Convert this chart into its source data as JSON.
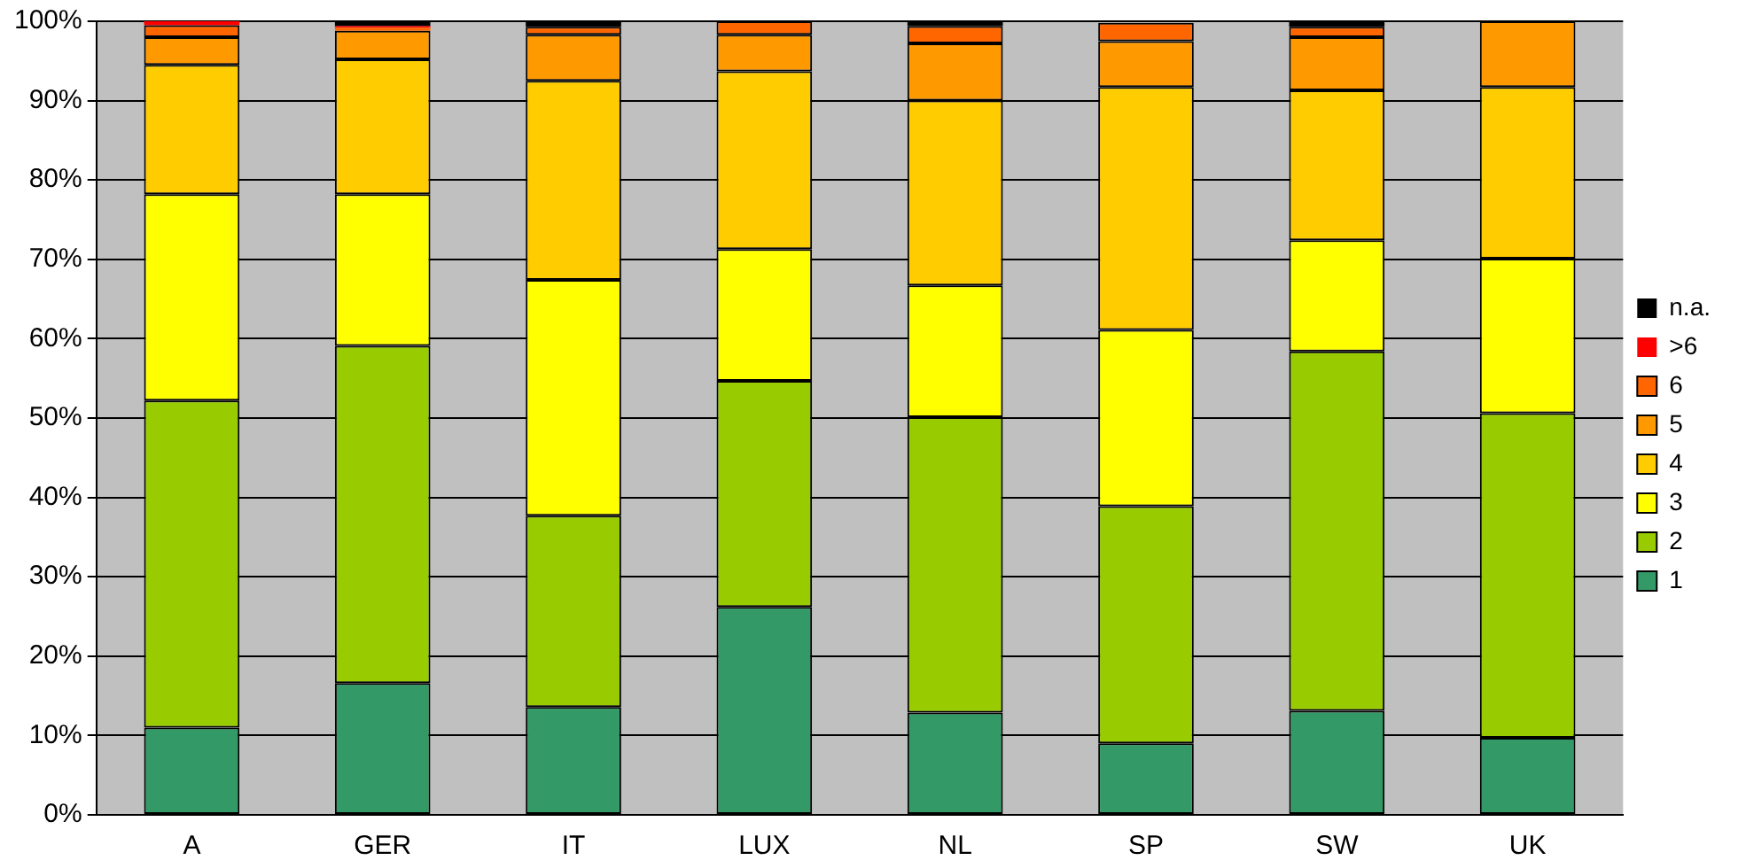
{
  "chart_data": {
    "type": "bar",
    "stacked": true,
    "categories": [
      "A",
      "GER",
      "IT",
      "LUX",
      "NL",
      "SP",
      "SW",
      "UK"
    ],
    "series": [
      {
        "name": "1",
        "color": "#339966",
        "values": [
          11.0,
          16.6,
          13.6,
          26.2,
          12.9,
          9.0,
          13.1,
          9.7
        ]
      },
      {
        "name": "2",
        "color": "#99cc00",
        "values": [
          41.2,
          42.5,
          24.1,
          28.5,
          37.2,
          29.9,
          45.3,
          40.9
        ]
      },
      {
        "name": "3",
        "color": "#ffff00",
        "values": [
          26.0,
          19.1,
          29.7,
          16.6,
          16.6,
          22.2,
          14.0,
          19.5
        ]
      },
      {
        "name": "4",
        "color": "#ffcc00",
        "values": [
          16.3,
          17.0,
          25.1,
          22.4,
          23.3,
          30.6,
          18.9,
          21.6
        ]
      },
      {
        "name": "5",
        "color": "#ff9900",
        "values": [
          3.5,
          3.6,
          5.8,
          4.6,
          7.2,
          5.8,
          6.7,
          8.3
        ]
      },
      {
        "name": "6",
        "color": "#ff6600",
        "values": [
          1.5,
          0.4,
          1.0,
          1.7,
          2.2,
          2.3,
          1.3,
          0
        ]
      },
      {
        "name": ">6",
        "color": "#ff0000",
        "values": [
          0.5,
          0.2,
          0,
          0,
          0,
          0,
          0,
          0
        ]
      },
      {
        "name": "n.a.",
        "color": "#000000",
        "values": [
          0,
          0.6,
          0.7,
          0,
          0.6,
          null,
          0.7,
          0
        ]
      }
    ],
    "ylim": [
      0,
      100
    ],
    "yticks": [
      {
        "value": 0,
        "label": "0%"
      },
      {
        "value": 10,
        "label": "10%"
      },
      {
        "value": 20,
        "label": "20%"
      },
      {
        "value": 30,
        "label": "30%"
      },
      {
        "value": 40,
        "label": "40%"
      },
      {
        "value": 50,
        "label": "50%"
      },
      {
        "value": 60,
        "label": "60%"
      },
      {
        "value": 70,
        "label": "70%"
      },
      {
        "value": 80,
        "label": "80%"
      },
      {
        "value": 90,
        "label": "90%"
      },
      {
        "value": 100,
        "label": "100%"
      }
    ],
    "grid": "y",
    "legend": "right"
  }
}
